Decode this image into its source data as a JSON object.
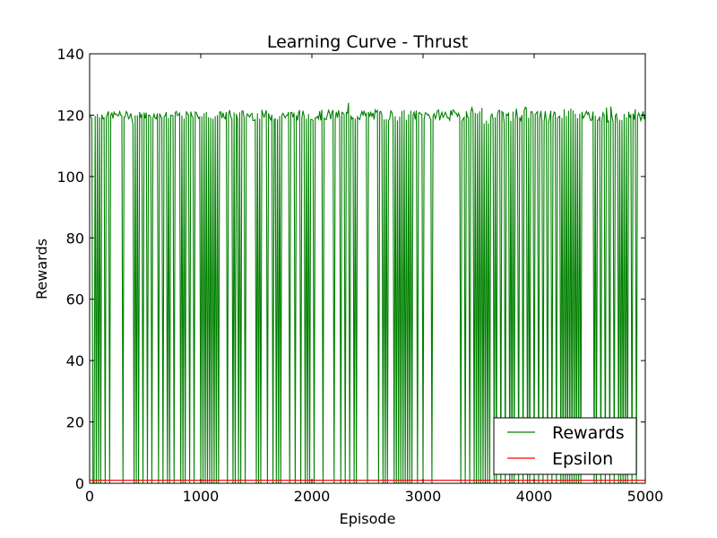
{
  "chart_data": {
    "type": "line",
    "title": "Learning Curve - Thrust",
    "xlabel": "Episode",
    "ylabel": "Rewards",
    "xlim": [
      0,
      5000
    ],
    "ylim": [
      0,
      140
    ],
    "x_ticks": [
      0,
      1000,
      2000,
      3000,
      4000,
      5000
    ],
    "y_ticks": [
      0,
      20,
      40,
      60,
      80,
      100,
      120,
      140
    ],
    "grid": false,
    "legend_position": "lower-right",
    "baseline_reward": 120,
    "drop_episodes": [
      5,
      18,
      30,
      40,
      60,
      80,
      100,
      140,
      180,
      300,
      400,
      420,
      440,
      480,
      520,
      560,
      620,
      660,
      700,
      720,
      760,
      820,
      840,
      860,
      900,
      940,
      1000,
      1020,
      1040,
      1060,
      1080,
      1100,
      1120,
      1140,
      1160,
      1240,
      1290,
      1310,
      1340,
      1360,
      1400,
      1500,
      1520,
      1540,
      1600,
      1650,
      1680,
      1700,
      1720,
      1800,
      1850,
      1900,
      1940,
      1960,
      1980,
      2020,
      2100,
      2200,
      2260,
      2300,
      2340,
      2380,
      2400,
      2500,
      2600,
      2640,
      2660,
      2680,
      2740,
      2760,
      2780,
      2800,
      2820,
      2840,
      2860,
      2880,
      2900,
      2950,
      3000,
      3080,
      3340,
      3380,
      3420,
      3460,
      3480,
      3500,
      3520,
      3540,
      3560,
      3580,
      3600,
      3640,
      3660,
      3700,
      3740,
      3780,
      3800,
      3820,
      3860,
      3900,
      3940,
      3960,
      4000,
      4040,
      4080,
      4120,
      4160,
      4200,
      4240,
      4260,
      4280,
      4300,
      4320,
      4340,
      4360,
      4380,
      4400,
      4420,
      4540,
      4560,
      4600,
      4640,
      4680,
      4720,
      4760,
      4780,
      4800,
      4820,
      4840,
      4880,
      4920
    ],
    "series": [
      {
        "name": "Rewards",
        "color": "#008000",
        "description_values": {
          "typical": 120,
          "min": 0,
          "max": 125
        }
      },
      {
        "name": "Epsilon",
        "color": "#ff0000",
        "values": [
          1,
          1
        ]
      }
    ]
  }
}
